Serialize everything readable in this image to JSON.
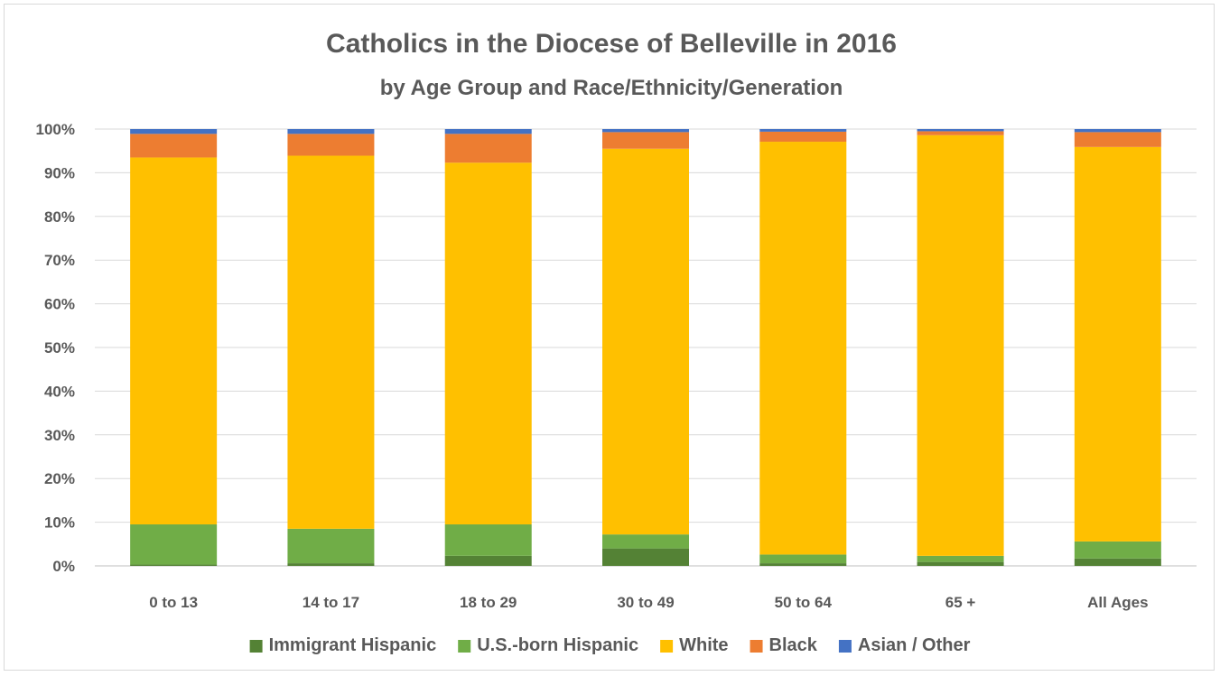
{
  "chart_data": {
    "type": "bar",
    "stacked": true,
    "title": "Catholics in the Diocese of Belleville in 2016",
    "subtitle": "by Age Group and Race/Ethnicity/Generation",
    "xlabel": "",
    "ylabel": "",
    "categories": [
      "0 to 13",
      "14 to 17",
      "18 to 29",
      "30 to 49",
      "50 to 64",
      "65 +",
      "All Ages"
    ],
    "ylim": [
      0,
      100
    ],
    "y_ticks": [
      "0%",
      "10%",
      "20%",
      "30%",
      "40%",
      "50%",
      "60%",
      "70%",
      "80%",
      "90%",
      "100%"
    ],
    "grid": true,
    "legend_position": "bottom",
    "series": [
      {
        "name": "Immigrant Hispanic",
        "color": "#548235",
        "values": [
          0.3,
          0.6,
          2.3,
          4.0,
          0.6,
          0.9,
          1.7
        ]
      },
      {
        "name": "U.S.-born Hispanic",
        "color": "#70ad47",
        "values": [
          9.2,
          7.9,
          7.2,
          3.2,
          2.0,
          1.4,
          3.9
        ]
      },
      {
        "name": "White",
        "color": "#ffc000",
        "values": [
          84.0,
          85.4,
          82.8,
          88.3,
          94.5,
          96.3,
          90.3
        ]
      },
      {
        "name": "Black",
        "color": "#ed7d31",
        "values": [
          5.4,
          5.0,
          6.6,
          3.8,
          2.3,
          0.9,
          3.4
        ]
      },
      {
        "name": "Asian / Other",
        "color": "#4472c4",
        "values": [
          1.1,
          1.1,
          1.1,
          0.7,
          0.6,
          0.5,
          0.7
        ]
      }
    ]
  }
}
